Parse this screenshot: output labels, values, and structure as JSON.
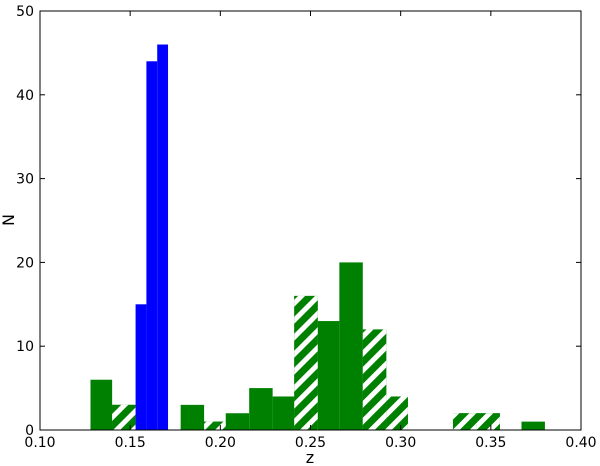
{
  "chart_data": {
    "type": "bar",
    "title": "",
    "xlabel": "z",
    "ylabel": "N",
    "xlim": [
      0.1,
      0.4
    ],
    "ylim": [
      0,
      50
    ],
    "xticks": [
      "0.10",
      "0.15",
      "0.20",
      "0.25",
      "0.30",
      "0.35",
      "0.40"
    ],
    "yticks": [
      "0",
      "10",
      "20",
      "30",
      "40",
      "50"
    ],
    "grid": false,
    "legend": "none",
    "series": [
      {
        "color": "#008000",
        "hatch": "none",
        "bins": [
          {
            "x0": 0.128,
            "x1": 0.14,
            "value": 6
          },
          {
            "x0": 0.14,
            "x1": 0.153,
            "value": 3
          },
          {
            "x0": 0.178,
            "x1": 0.191,
            "value": 3
          },
          {
            "x0": 0.191,
            "x1": 0.203,
            "value": 1
          },
          {
            "x0": 0.203,
            "x1": 0.216,
            "value": 2
          },
          {
            "x0": 0.216,
            "x1": 0.229,
            "value": 5
          },
          {
            "x0": 0.229,
            "x1": 0.241,
            "value": 4
          },
          {
            "x0": 0.241,
            "x1": 0.254,
            "value": 16
          },
          {
            "x0": 0.254,
            "x1": 0.266,
            "value": 13
          },
          {
            "x0": 0.266,
            "x1": 0.279,
            "value": 20
          },
          {
            "x0": 0.279,
            "x1": 0.292,
            "value": 12
          },
          {
            "x0": 0.292,
            "x1": 0.304,
            "value": 4
          },
          {
            "x0": 0.329,
            "x1": 0.342,
            "value": 2
          },
          {
            "x0": 0.342,
            "x1": 0.355,
            "value": 2
          },
          {
            "x0": 0.367,
            "x1": 0.38,
            "value": 1
          }
        ]
      },
      {
        "color": "#ffffff",
        "hatch": "diagonal",
        "bins": [
          {
            "x0": 0.14,
            "x1": 0.153,
            "value": 3
          },
          {
            "x0": 0.191,
            "x1": 0.203,
            "value": 1
          },
          {
            "x0": 0.241,
            "x1": 0.254,
            "value": 16
          },
          {
            "x0": 0.279,
            "x1": 0.292,
            "value": 12
          },
          {
            "x0": 0.292,
            "x1": 0.304,
            "value": 4
          },
          {
            "x0": 0.329,
            "x1": 0.342,
            "value": 2
          },
          {
            "x0": 0.342,
            "x1": 0.355,
            "value": 2
          }
        ]
      },
      {
        "color": "#0000ff",
        "hatch": "none",
        "bins": [
          {
            "x0": 0.153,
            "x1": 0.159,
            "value": 15
          },
          {
            "x0": 0.159,
            "x1": 0.165,
            "value": 44
          },
          {
            "x0": 0.165,
            "x1": 0.171,
            "value": 46
          }
        ]
      }
    ]
  }
}
